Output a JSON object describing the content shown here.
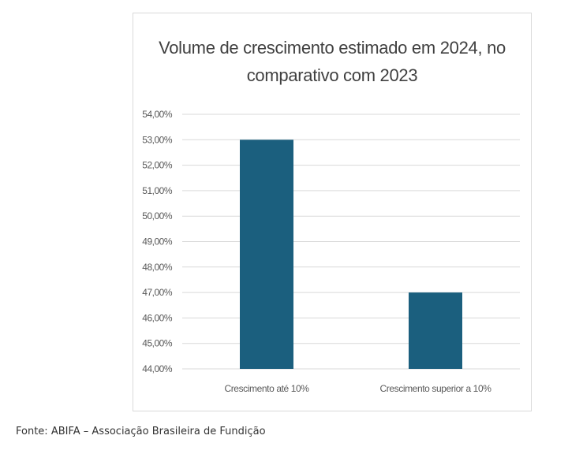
{
  "chart_data": {
    "type": "bar",
    "title_lines": [
      "Volume de crescimento estimado em 2024, no",
      "comparativo com 2023"
    ],
    "categories": [
      "Crescimento até 10%",
      "Crescimento superior a 10%"
    ],
    "values": [
      53.0,
      47.0
    ],
    "ylim": [
      44.0,
      54.0
    ],
    "ytick_step": 1.0,
    "ytick_labels": [
      "44,00%",
      "45,00%",
      "46,00%",
      "47,00%",
      "48,00%",
      "49,00%",
      "50,00%",
      "51,00%",
      "52,00%",
      "53,00%",
      "54,00%"
    ],
    "grid": true,
    "legend": "none",
    "bar_color": "#1b5f7e",
    "grid_color": "#d9d9d9"
  },
  "source_note": "Fonte: ABIFA – Associação Brasileira de Fundição"
}
